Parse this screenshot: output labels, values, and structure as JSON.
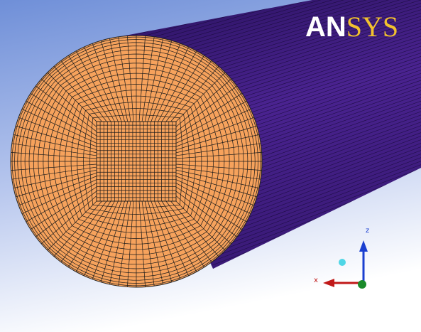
{
  "logo": [
    "AN",
    "SYS"
  ],
  "triad": {
    "z": "z",
    "x": "x"
  }
}
